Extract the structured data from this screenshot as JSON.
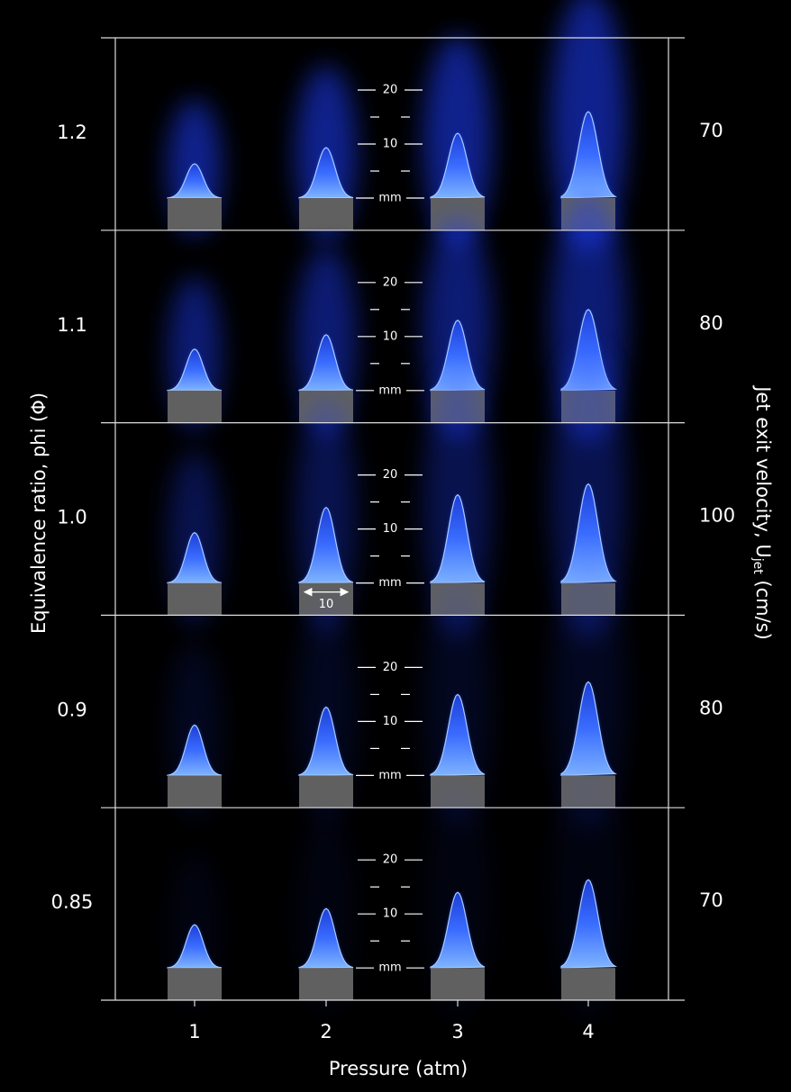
{
  "axis_labels": {
    "left": "Equivalence ratio, phi (Φ)",
    "right": {
      "prefix": "Jet exit velocity, U",
      "subscript": "jet",
      "suffix": " (cm/s)"
    },
    "bottom": "Pressure (atm)"
  },
  "columns": [
    "1",
    "2",
    "3",
    "4"
  ],
  "rows": [
    {
      "phi": "1.2",
      "velocity": "70"
    },
    {
      "phi": "1.1",
      "velocity": "80"
    },
    {
      "phi": "1.0",
      "velocity": "100"
    },
    {
      "phi": "0.9",
      "velocity": "80"
    },
    {
      "phi": "0.85",
      "velocity": "70"
    }
  ],
  "scale_marks": [
    "20",
    "10",
    "mm"
  ],
  "burner_width_label": "10"
}
